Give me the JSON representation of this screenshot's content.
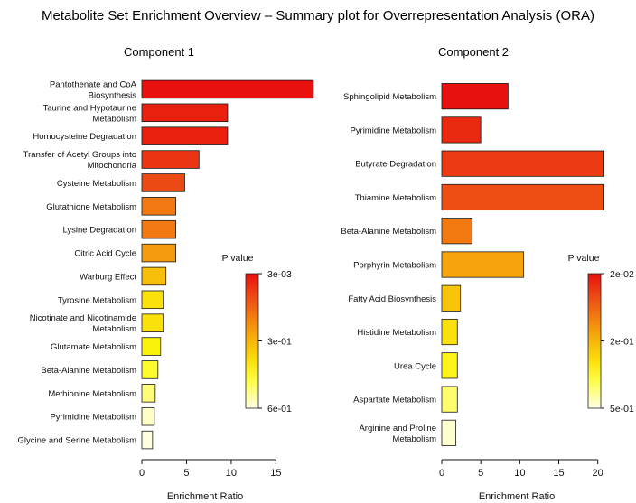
{
  "title": "Metabolite Set Enrichment Overview – Summary plot for Overrepresentation Analysis (ORA)",
  "chart_data": [
    {
      "type": "bar",
      "orientation": "horizontal",
      "title": "Component 1",
      "xlabel": "Enrichment Ratio",
      "xlim": [
        0,
        18.5
      ],
      "xticks": [
        0,
        5,
        10,
        15
      ],
      "categories": [
        [
          "Pantothenate and CoA",
          "Biosynthesis"
        ],
        [
          "Taurine and Hypotaurine",
          "Metabolism"
        ],
        [
          "Homocysteine Degradation"
        ],
        [
          "Transfer of Acetyl Groups into",
          "Mitochondria"
        ],
        [
          "Cysteine Metabolism"
        ],
        [
          "Glutathione Metabolism"
        ],
        [
          "Lysine Degradation"
        ],
        [
          "Citric Acid Cycle"
        ],
        [
          "Warburg Effect"
        ],
        [
          "Tyrosine Metabolism"
        ],
        [
          "Nicotinate and Nicotinamide",
          "Metabolism"
        ],
        [
          "Glutamate Metabolism"
        ],
        [
          "Beta-Alanine Metabolism"
        ],
        [
          "Methionine Metabolism"
        ],
        [
          "Pyrimidine Metabolism"
        ],
        [
          "Glycine and Serine Metabolism"
        ]
      ],
      "values": [
        19.2,
        9.6,
        9.6,
        6.4,
        4.8,
        3.8,
        3.8,
        3.8,
        2.7,
        2.4,
        2.4,
        2.1,
        1.8,
        1.5,
        1.4,
        1.2
      ],
      "colors": [
        "#e8110f",
        "#e9200f",
        "#e9200f",
        "#ea3412",
        "#ec4a14",
        "#f27811",
        "#f27811",
        "#f59a0d",
        "#f8bf0a",
        "#fbe10b",
        "#fbe10b",
        "#fcf10b",
        "#fdfb2c",
        "#fefd7a",
        "#fefec6",
        "#fefede"
      ],
      "legend": {
        "title": "P value",
        "tick_labels": [
          "3e-03",
          "3e-01",
          "6e-01"
        ]
      }
    },
    {
      "type": "bar",
      "orientation": "horizontal",
      "title": "Component 2",
      "xlabel": "Enrichment Ratio",
      "xlim": [
        0,
        20.5
      ],
      "xticks": [
        0,
        5,
        10,
        15,
        20
      ],
      "categories": [
        [
          "Sphingolipid Metabolism"
        ],
        [
          "Pyrimidine Metabolism"
        ],
        [
          "Butyrate Degradation"
        ],
        [
          "Thiamine Metabolism"
        ],
        [
          "Beta-Alanine Metabolism"
        ],
        [
          "Porphyrin Metabolism"
        ],
        [
          "Fatty Acid Biosynthesis"
        ],
        [
          "Histidine Metabolism"
        ],
        [
          "Urea Cycle"
        ],
        [
          "Aspartate Metabolism"
        ],
        [
          "Arginine and Proline",
          "Metabolism"
        ]
      ],
      "values": [
        8.5,
        5.0,
        20.8,
        20.8,
        3.9,
        10.5,
        2.4,
        2.0,
        2.0,
        2.0,
        1.8
      ],
      "colors": [
        "#e8110f",
        "#ea2a10",
        "#ec3b13",
        "#ee4d14",
        "#f2790f",
        "#f6a40c",
        "#f8c40a",
        "#fbe10b",
        "#fdf51a",
        "#fefd6e",
        "#fefed0"
      ],
      "legend": {
        "title": "P value",
        "tick_labels": [
          "2e-02",
          "2e-01",
          "5e-01"
        ]
      }
    }
  ]
}
